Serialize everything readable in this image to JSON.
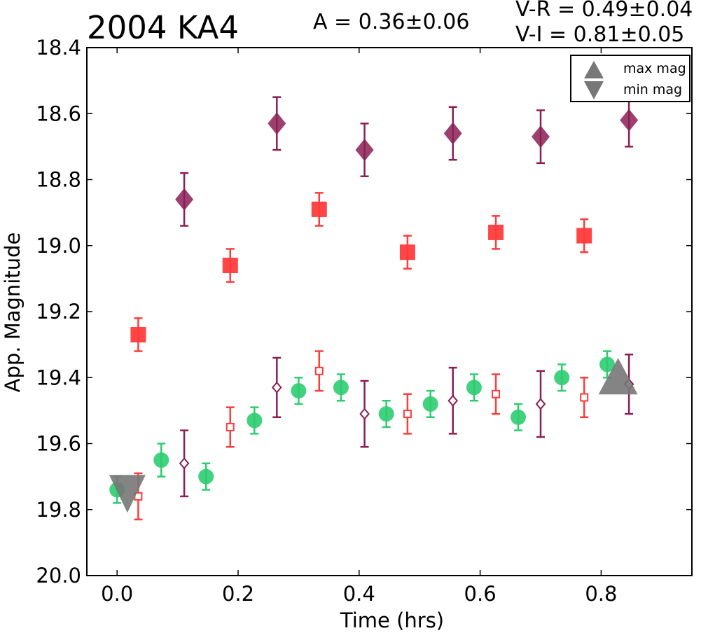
{
  "chart_data": {
    "type": "scatter",
    "title": "2004 KA4",
    "annotations": {
      "amplitude": "A  = 0.36±0.06",
      "v_r": "V-R = 0.49±0.04",
      "v_i": "V-I  = 0.81±0.05"
    },
    "xlabel": "Time (hrs)",
    "ylabel": "App. Magnitude",
    "xlim": [
      -0.05,
      0.95
    ],
    "ylim": [
      20.0,
      18.4
    ],
    "y_inverted": true,
    "grid": false,
    "x_ticks": [
      "0.0",
      "0.2",
      "0.4",
      "0.6",
      "0.8"
    ],
    "y_ticks": [
      "18.4",
      "18.6",
      "18.8",
      "19.0",
      "19.2",
      "19.4",
      "19.6",
      "19.8",
      "20.0"
    ],
    "legend": {
      "position": "top-right",
      "entries": [
        "max mag",
        "min mag"
      ]
    },
    "series": [
      {
        "marker": "filled-diamond",
        "color": "#8b1e55",
        "x": [
          0.111,
          0.264,
          0.409,
          0.555,
          0.7,
          0.846
        ],
        "y": [
          18.86,
          18.63,
          18.71,
          18.66,
          18.67,
          18.62
        ],
        "err": [
          0.08,
          0.08,
          0.08,
          0.08,
          0.08,
          0.08
        ]
      },
      {
        "marker": "filled-square",
        "color": "#ff3b3b",
        "x": [
          0.035,
          0.187,
          0.334,
          0.48,
          0.626,
          0.772
        ],
        "y": [
          19.27,
          19.06,
          18.89,
          19.02,
          18.96,
          18.97
        ],
        "err": [
          0.05,
          0.05,
          0.05,
          0.05,
          0.05,
          0.05
        ]
      },
      {
        "marker": "filled-circle",
        "color": "#2ecc71",
        "x": [
          0.0,
          0.073,
          0.147,
          0.227,
          0.3,
          0.37,
          0.445,
          0.518,
          0.59,
          0.663,
          0.735,
          0.81
        ],
        "y": [
          19.74,
          19.65,
          19.7,
          19.53,
          19.44,
          19.43,
          19.51,
          19.48,
          19.43,
          19.52,
          19.4,
          19.36
        ],
        "err": [
          0.04,
          0.05,
          0.04,
          0.04,
          0.04,
          0.04,
          0.04,
          0.04,
          0.04,
          0.04,
          0.04,
          0.04
        ]
      },
      {
        "marker": "open-square",
        "color": "#ff3b3b",
        "x": [
          0.035,
          0.187,
          0.334,
          0.48,
          0.626,
          0.772
        ],
        "y": [
          19.76,
          19.55,
          19.38,
          19.51,
          19.45,
          19.46
        ],
        "err": [
          0.07,
          0.06,
          0.06,
          0.06,
          0.06,
          0.06
        ]
      },
      {
        "marker": "open-diamond",
        "color": "#8b1e55",
        "x": [
          0.111,
          0.264,
          0.409,
          0.555,
          0.7,
          0.846
        ],
        "y": [
          19.66,
          19.43,
          19.51,
          19.47,
          19.48,
          19.42
        ],
        "err": [
          0.1,
          0.09,
          0.1,
          0.1,
          0.1,
          0.09
        ]
      }
    ],
    "extrema": [
      {
        "kind": "min mag",
        "marker": "down-triangle",
        "color": "#777777",
        "x": 0.017,
        "y": 19.75
      },
      {
        "kind": "max mag",
        "marker": "up-triangle",
        "color": "#777777",
        "x": 0.828,
        "y": 19.4
      }
    ]
  }
}
